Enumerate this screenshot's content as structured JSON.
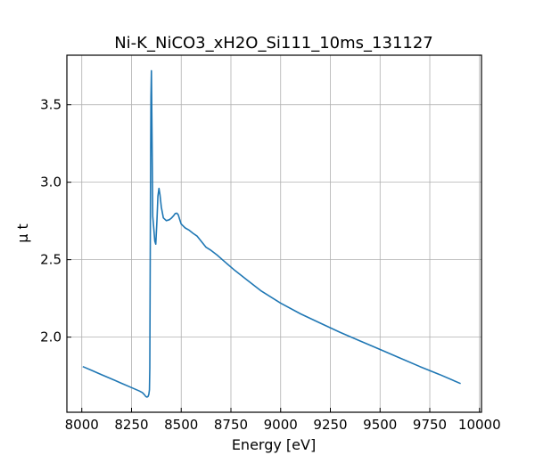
{
  "chart_data": {
    "type": "line",
    "title": "Ni-K_NiCO3_xH2O_Si111_10ms_131127",
    "xlabel": "Energy [eV]",
    "ylabel": "μ t",
    "xlim": [
      7925,
      10010
    ],
    "ylim": [
      1.515,
      3.82
    ],
    "xticks": [
      8000,
      8250,
      8500,
      8750,
      9000,
      9250,
      9500,
      9750,
      10000
    ],
    "yticks": [
      2.0,
      2.5,
      3.0,
      3.5
    ],
    "ytick_labels": [
      "2.0",
      "2.5",
      "3.0",
      "3.5"
    ],
    "grid": true,
    "series_color": "#1f77b4",
    "series": [
      {
        "x": [
          8005,
          8050,
          8100,
          8150,
          8200,
          8250,
          8290,
          8305,
          8315,
          8322,
          8328,
          8333,
          8337,
          8340,
          8342,
          8344,
          8346,
          8348,
          8350,
          8353,
          8357,
          8362,
          8367,
          8372,
          8378,
          8383,
          8388,
          8393,
          8400,
          8410,
          8425,
          8440,
          8452,
          8462,
          8470,
          8478,
          8485,
          8492,
          8500,
          8520,
          8540,
          8560,
          8580,
          8600,
          8625,
          8650,
          8680,
          8720,
          8770,
          8830,
          8900,
          9000,
          9100,
          9200,
          9300,
          9400,
          9500,
          9600,
          9700,
          9800,
          9905
        ],
        "y": [
          1.81,
          1.785,
          1.757,
          1.73,
          1.702,
          1.674,
          1.652,
          1.642,
          1.628,
          1.617,
          1.613,
          1.617,
          1.63,
          1.66,
          1.8,
          2.4,
          3.1,
          3.55,
          3.72,
          3.3,
          2.78,
          2.7,
          2.62,
          2.6,
          2.75,
          2.91,
          2.96,
          2.92,
          2.84,
          2.77,
          2.752,
          2.758,
          2.77,
          2.785,
          2.798,
          2.8,
          2.79,
          2.76,
          2.73,
          2.705,
          2.69,
          2.67,
          2.652,
          2.62,
          2.58,
          2.56,
          2.53,
          2.485,
          2.43,
          2.37,
          2.3,
          2.22,
          2.15,
          2.09,
          2.03,
          1.975,
          1.92,
          1.865,
          1.81,
          1.758,
          1.7
        ]
      }
    ]
  }
}
